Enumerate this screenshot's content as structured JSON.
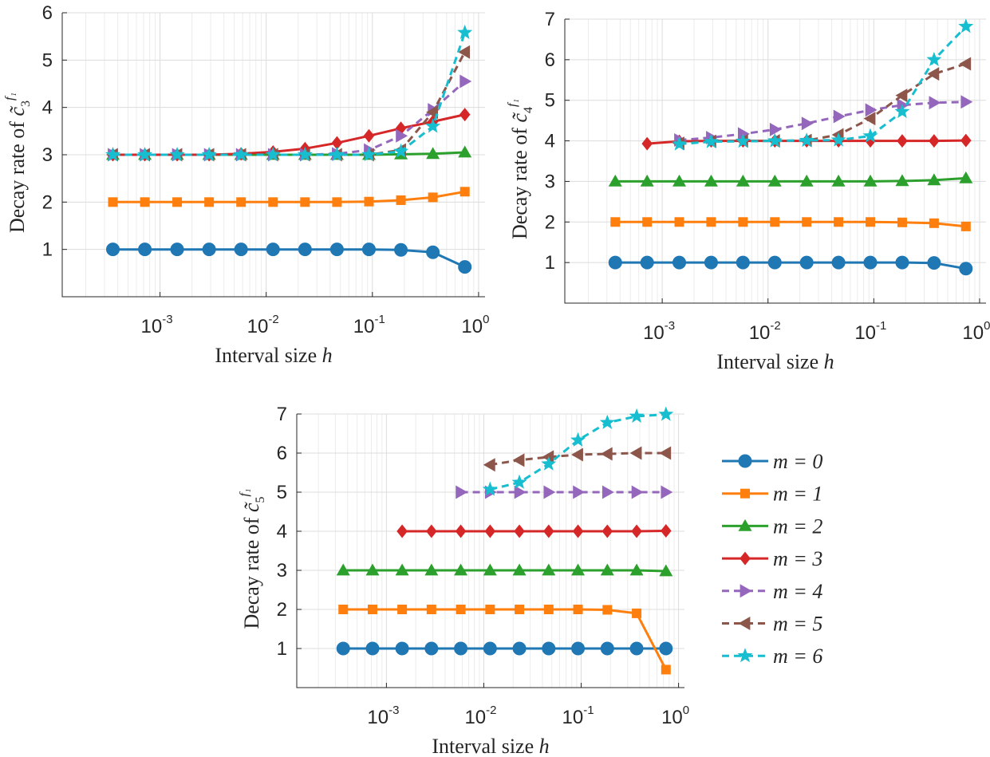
{
  "colors": {
    "m0": "#1f77b4",
    "m1": "#ff7f0e",
    "m2": "#2ca02c",
    "m3": "#d62728",
    "m4": "#9467bd",
    "m5": "#8c564b",
    "m6": "#17becf",
    "axis": "#262626"
  },
  "legend": {
    "entries": [
      {
        "label": "m = 0",
        "series": "m0"
      },
      {
        "label": "m = 1",
        "series": "m1"
      },
      {
        "label": "m = 2",
        "series": "m2"
      },
      {
        "label": "m = 3",
        "series": "m3"
      },
      {
        "label": "m = 4",
        "series": "m4"
      },
      {
        "label": "m = 5",
        "series": "m5"
      },
      {
        "label": "m = 6",
        "series": "m6"
      }
    ]
  },
  "chart_data": [
    {
      "type": "line",
      "xscale": "log",
      "xlabel_main": "Interval size ",
      "xlabel_var": "h",
      "ylabel_main": "Decay rate of ",
      "ylabel_sym": "c̃",
      "ylabel_sub": "3",
      "ylabel_sup": "f₁",
      "xlim": [
        0.00012,
        1.15
      ],
      "ylim": [
        0,
        6
      ],
      "yticks": [
        1,
        2,
        3,
        4,
        5,
        6
      ],
      "xticks": [
        {
          "value": 0.001,
          "base": "10",
          "exp": "-3"
        },
        {
          "value": 0.01,
          "base": "10",
          "exp": "-2"
        },
        {
          "value": 0.1,
          "base": "10",
          "exp": "-1"
        },
        {
          "value": 1,
          "base": "10",
          "exp": "0"
        }
      ],
      "x": [
        0.00036,
        0.00072,
        0.00145,
        0.0029,
        0.0058,
        0.0116,
        0.0232,
        0.0464,
        0.0928,
        0.1856,
        0.3712,
        0.7424
      ],
      "series": [
        {
          "name": "m = 0",
          "key": "m0",
          "marker": "circle",
          "dash": false,
          "values": [
            1.0,
            1.0,
            1.0,
            1.0,
            1.0,
            1.0,
            1.0,
            1.0,
            1.0,
            0.99,
            0.94,
            0.63
          ]
        },
        {
          "name": "m = 1",
          "key": "m1",
          "marker": "square",
          "dash": false,
          "values": [
            2.0,
            2.0,
            2.0,
            2.0,
            2.0,
            2.0,
            2.0,
            2.0,
            2.01,
            2.04,
            2.1,
            2.22
          ]
        },
        {
          "name": "m = 2",
          "key": "m2",
          "marker": "triangle-up",
          "dash": false,
          "values": [
            3.0,
            3.0,
            3.0,
            3.0,
            3.0,
            3.0,
            3.0,
            3.0,
            3.0,
            3.01,
            3.02,
            3.05
          ]
        },
        {
          "name": "m = 3",
          "key": "m3",
          "marker": "diamond",
          "dash": false,
          "values": [
            3.0,
            3.0,
            3.0,
            3.0,
            3.02,
            3.06,
            3.13,
            3.25,
            3.4,
            3.56,
            3.7,
            3.85
          ]
        },
        {
          "name": "m = 4",
          "key": "m4",
          "marker": "triangle-right",
          "dash": true,
          "values": [
            3.0,
            3.0,
            3.0,
            3.0,
            3.0,
            3.0,
            3.0,
            3.02,
            3.1,
            3.4,
            3.95,
            4.55
          ]
        },
        {
          "name": "m = 5",
          "key": "m5",
          "marker": "triangle-left",
          "dash": true,
          "values": [
            3.0,
            3.0,
            3.0,
            3.0,
            3.0,
            3.0,
            3.0,
            3.0,
            3.0,
            3.1,
            3.9,
            5.17
          ]
        },
        {
          "name": "m = 6",
          "key": "m6",
          "marker": "star",
          "dash": true,
          "values": [
            3.0,
            3.0,
            3.0,
            3.0,
            3.0,
            3.0,
            3.0,
            3.0,
            3.0,
            3.07,
            3.6,
            5.58
          ]
        }
      ]
    },
    {
      "type": "line",
      "xscale": "log",
      "xlabel_main": "Interval size ",
      "xlabel_var": "h",
      "ylabel_main": "Decay rate of ",
      "ylabel_sym": "c̃",
      "ylabel_sub": "4",
      "ylabel_sup": "f₁",
      "xlim": [
        0.00012,
        1.15
      ],
      "ylim": [
        0,
        7
      ],
      "yticks": [
        1,
        2,
        3,
        4,
        5,
        6,
        7
      ],
      "xticks": [
        {
          "value": 0.001,
          "base": "10",
          "exp": "-3"
        },
        {
          "value": 0.01,
          "base": "10",
          "exp": "-2"
        },
        {
          "value": 0.1,
          "base": "10",
          "exp": "-1"
        },
        {
          "value": 1,
          "base": "10",
          "exp": "0"
        }
      ],
      "x": [
        0.00036,
        0.00072,
        0.00145,
        0.0029,
        0.0058,
        0.0116,
        0.0232,
        0.0464,
        0.0928,
        0.1856,
        0.3712,
        0.7424
      ],
      "series": [
        {
          "name": "m = 0",
          "key": "m0",
          "marker": "circle",
          "dash": false,
          "values": [
            1.0,
            1.0,
            1.0,
            1.0,
            1.0,
            1.0,
            1.0,
            1.0,
            1.0,
            1.0,
            0.99,
            0.85
          ]
        },
        {
          "name": "m = 1",
          "key": "m1",
          "marker": "square",
          "dash": false,
          "values": [
            2.0,
            2.0,
            2.0,
            2.0,
            2.0,
            2.0,
            2.0,
            2.0,
            2.0,
            1.99,
            1.97,
            1.89
          ]
        },
        {
          "name": "m = 2",
          "key": "m2",
          "marker": "triangle-up",
          "dash": false,
          "values": [
            3.0,
            3.0,
            3.0,
            3.0,
            3.0,
            3.0,
            3.0,
            3.0,
            3.0,
            3.01,
            3.03,
            3.08
          ]
        },
        {
          "name": "m = 3",
          "key": "m3",
          "marker": "diamond",
          "dash": false,
          "values": [
            null,
            3.93,
            3.99,
            4.0,
            4.0,
            4.0,
            4.0,
            4.0,
            4.0,
            4.0,
            4.0,
            4.01
          ]
        },
        {
          "name": "m = 4",
          "key": "m4",
          "marker": "triangle-right",
          "dash": true,
          "values": [
            null,
            null,
            4.02,
            4.08,
            4.17,
            4.28,
            4.43,
            4.6,
            4.76,
            4.88,
            4.94,
            4.96
          ]
        },
        {
          "name": "m = 5",
          "key": "m5",
          "marker": "triangle-left",
          "dash": true,
          "values": [
            null,
            null,
            3.94,
            3.99,
            4.0,
            4.0,
            4.01,
            4.15,
            4.55,
            5.12,
            5.65,
            5.9
          ]
        },
        {
          "name": "m = 6",
          "key": "m6",
          "marker": "star",
          "dash": true,
          "values": [
            null,
            null,
            3.92,
            3.98,
            3.99,
            4.0,
            4.01,
            4.02,
            4.12,
            4.72,
            6.0,
            6.82
          ]
        }
      ]
    },
    {
      "type": "line",
      "xscale": "log",
      "xlabel_main": "Interval size ",
      "xlabel_var": "h",
      "ylabel_main": "Decay rate of ",
      "ylabel_sym": "c̃",
      "ylabel_sub": "5",
      "ylabel_sup": "f₁",
      "xlim": [
        0.00012,
        1.15
      ],
      "ylim": [
        0,
        7
      ],
      "yticks": [
        1,
        2,
        3,
        4,
        5,
        6,
        7
      ],
      "xticks": [
        {
          "value": 0.001,
          "base": "10",
          "exp": "-3"
        },
        {
          "value": 0.01,
          "base": "10",
          "exp": "-2"
        },
        {
          "value": 0.1,
          "base": "10",
          "exp": "-1"
        },
        {
          "value": 1,
          "base": "10",
          "exp": "0"
        }
      ],
      "x": [
        0.00036,
        0.00072,
        0.00145,
        0.0029,
        0.0058,
        0.0116,
        0.0232,
        0.0464,
        0.0928,
        0.1856,
        0.3712,
        0.7424
      ],
      "series": [
        {
          "name": "m = 0",
          "key": "m0",
          "marker": "circle",
          "dash": false,
          "values": [
            1.0,
            1.0,
            1.0,
            1.0,
            1.0,
            1.0,
            1.0,
            1.0,
            1.0,
            1.0,
            1.0,
            1.0
          ]
        },
        {
          "name": "m = 1",
          "key": "m1",
          "marker": "square",
          "dash": false,
          "values": [
            2.0,
            2.0,
            2.0,
            2.0,
            2.0,
            2.0,
            2.0,
            2.0,
            2.0,
            1.99,
            1.9,
            0.46
          ]
        },
        {
          "name": "m = 2",
          "key": "m2",
          "marker": "triangle-up",
          "dash": false,
          "values": [
            3.0,
            3.0,
            3.0,
            3.0,
            3.0,
            3.0,
            3.0,
            3.0,
            3.0,
            3.0,
            3.0,
            2.98
          ]
        },
        {
          "name": "m = 3",
          "key": "m3",
          "marker": "diamond",
          "dash": false,
          "values": [
            null,
            null,
            4.0,
            4.0,
            4.0,
            4.0,
            4.0,
            4.0,
            4.0,
            4.0,
            4.0,
            4.01
          ]
        },
        {
          "name": "m = 4",
          "key": "m4",
          "marker": "triangle-right",
          "dash": true,
          "values": [
            null,
            null,
            null,
            null,
            5.0,
            5.0,
            5.0,
            5.0,
            5.0,
            5.0,
            5.0,
            5.0
          ]
        },
        {
          "name": "m = 5",
          "key": "m5",
          "marker": "triangle-left",
          "dash": true,
          "values": [
            null,
            null,
            null,
            null,
            null,
            5.7,
            5.82,
            5.9,
            5.96,
            5.98,
            6.0,
            6.0
          ]
        },
        {
          "name": "m = 6",
          "key": "m6",
          "marker": "star",
          "dash": true,
          "values": [
            null,
            null,
            null,
            null,
            null,
            5.07,
            5.25,
            5.72,
            6.33,
            6.78,
            6.94,
            6.99
          ]
        }
      ]
    }
  ]
}
